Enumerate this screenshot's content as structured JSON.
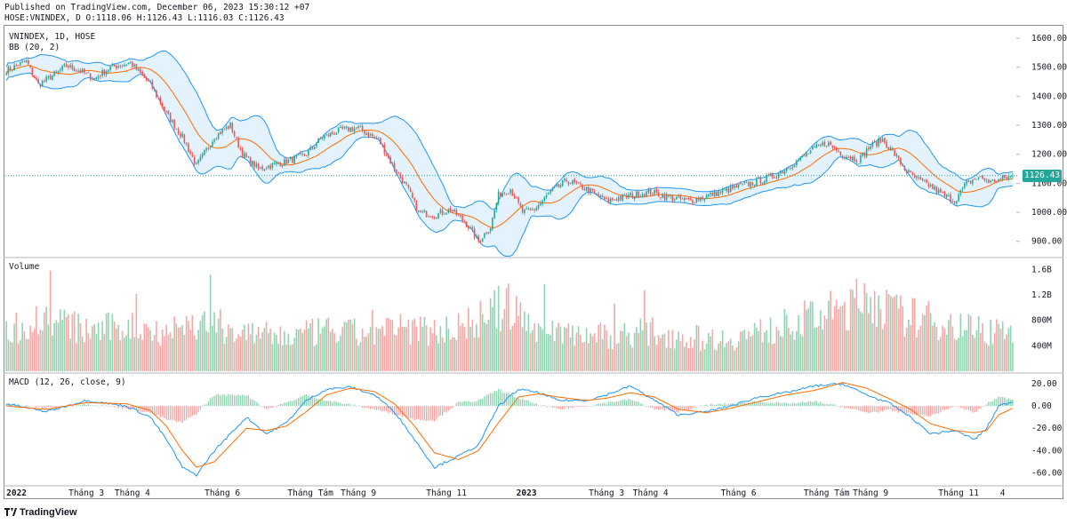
{
  "header": {
    "published": "Published on TradingView.com, December 06, 2023 15:30:12 +07",
    "ohlc": "HOSE:VNINDEX, D O:1118.06 H:1126.43 L:1116.03 C:1126.43"
  },
  "footer": {
    "brand": "TradingView"
  },
  "colors": {
    "up": "#26a69a",
    "down": "#ef5350",
    "up_volume": "#8fd3b0",
    "down_volume": "#f4a7a4",
    "bb_band": "#2196f3",
    "bb_fill": "#e3f2fd",
    "bb_basis": "#ff6d00",
    "macd_line": "#2196f3",
    "signal_line": "#ff6d00",
    "grid": "#f0f3fa",
    "axis_text": "#131722"
  },
  "chart_data": [
    {
      "type": "candlestick",
      "title": "VNINDEX, 1D, HOSE",
      "indicator_label": "BB (20, 2)",
      "ylim": [
        850,
        1640
      ],
      "y_ticks": [
        "1600.00",
        "1500.00",
        "1400.00",
        "1300.00",
        "1200.00",
        "1100.00",
        "1000.00",
        "900.00"
      ],
      "last_price": "1126.43",
      "x_labels": [
        "2022",
        "Tháng 3",
        "Tháng 4",
        "Tháng 6",
        "Tháng Tám",
        "Tháng 9",
        "Tháng 11",
        "2023",
        "Tháng 3",
        "Tháng 4",
        "Tháng 6",
        "Tháng Tám",
        "Tháng 9",
        "Tháng 11",
        "4"
      ],
      "x_label_bars": [
        0,
        40,
        63,
        108,
        152,
        176,
        220,
        260,
        300,
        322,
        366,
        410,
        432,
        476,
        498
      ],
      "close_anchors": [
        [
          0,
          1490
        ],
        [
          10,
          1520
        ],
        [
          16,
          1440
        ],
        [
          24,
          1475
        ],
        [
          30,
          1505
        ],
        [
          36,
          1490
        ],
        [
          44,
          1460
        ],
        [
          52,
          1500
        ],
        [
          62,
          1515
        ],
        [
          72,
          1440
        ],
        [
          80,
          1340
        ],
        [
          88,
          1260
        ],
        [
          95,
          1160
        ],
        [
          104,
          1260
        ],
        [
          112,
          1300
        ],
        [
          118,
          1200
        ],
        [
          126,
          1150
        ],
        [
          140,
          1175
        ],
        [
          150,
          1200
        ],
        [
          158,
          1260
        ],
        [
          168,
          1285
        ],
        [
          176,
          1290
        ],
        [
          186,
          1250
        ],
        [
          194,
          1150
        ],
        [
          200,
          1090
        ],
        [
          206,
          1000
        ],
        [
          214,
          990
        ],
        [
          222,
          1010
        ],
        [
          230,
          960
        ],
        [
          236,
          900
        ],
        [
          242,
          950
        ],
        [
          246,
          1060
        ],
        [
          252,
          1080
        ],
        [
          258,
          1000
        ],
        [
          264,
          1010
        ],
        [
          272,
          1070
        ],
        [
          280,
          1110
        ],
        [
          290,
          1080
        ],
        [
          300,
          1040
        ],
        [
          310,
          1055
        ],
        [
          322,
          1070
        ],
        [
          332,
          1050
        ],
        [
          342,
          1040
        ],
        [
          352,
          1060
        ],
        [
          362,
          1080
        ],
        [
          372,
          1100
        ],
        [
          384,
          1125
        ],
        [
          396,
          1180
        ],
        [
          404,
          1220
        ],
        [
          410,
          1240
        ],
        [
          418,
          1200
        ],
        [
          426,
          1180
        ],
        [
          432,
          1230
        ],
        [
          438,
          1250
        ],
        [
          444,
          1200
        ],
        [
          450,
          1140
        ],
        [
          456,
          1110
        ],
        [
          462,
          1090
        ],
        [
          468,
          1060
        ],
        [
          474,
          1040
        ],
        [
          480,
          1100
        ],
        [
          486,
          1120
        ],
        [
          492,
          1105
        ],
        [
          498,
          1115
        ],
        [
          503,
          1126.43
        ]
      ],
      "bars": 504
    },
    {
      "type": "bar",
      "title": "Volume",
      "ylim": [
        0,
        1760
      ],
      "y_ticks": [
        "1.6B",
        "1.2B",
        "800M",
        "400M"
      ],
      "y_tick_values": [
        1600,
        1200,
        800,
        400
      ],
      "volume_anchors": [
        [
          0,
          700
        ],
        [
          20,
          950
        ],
        [
          40,
          700
        ],
        [
          60,
          780
        ],
        [
          80,
          720
        ],
        [
          100,
          850
        ],
        [
          120,
          650
        ],
        [
          140,
          600
        ],
        [
          160,
          700
        ],
        [
          180,
          650
        ],
        [
          200,
          750
        ],
        [
          220,
          700
        ],
        [
          236,
          900
        ],
        [
          250,
          1150
        ],
        [
          262,
          800
        ],
        [
          280,
          700
        ],
        [
          300,
          620
        ],
        [
          320,
          700
        ],
        [
          340,
          600
        ],
        [
          360,
          560
        ],
        [
          380,
          700
        ],
        [
          400,
          900
        ],
        [
          420,
          1100
        ],
        [
          432,
          1300
        ],
        [
          444,
          1000
        ],
        [
          460,
          900
        ],
        [
          476,
          800
        ],
        [
          490,
          700
        ],
        [
          503,
          750
        ]
      ]
    },
    {
      "type": "line",
      "title": "MACD (12, 26, close, 9)",
      "ylim": [
        -70,
        28
      ],
      "y_ticks": [
        "20.00",
        "0.00",
        "-20.00",
        "-40.00",
        "-60.00"
      ],
      "y_tick_values": [
        20,
        0,
        -20,
        -40,
        -60
      ],
      "series": [
        {
          "name": "MACD",
          "anchors": [
            [
              0,
              2
            ],
            [
              20,
              -5
            ],
            [
              40,
              5
            ],
            [
              60,
              0
            ],
            [
              72,
              -10
            ],
            [
              80,
              -30
            ],
            [
              88,
              -55
            ],
            [
              95,
              -62
            ],
            [
              104,
              -40
            ],
            [
              112,
              -25
            ],
            [
              120,
              -10
            ],
            [
              130,
              -25
            ],
            [
              140,
              -15
            ],
            [
              150,
              5
            ],
            [
              160,
              15
            ],
            [
              172,
              17
            ],
            [
              184,
              10
            ],
            [
              194,
              -5
            ],
            [
              204,
              -30
            ],
            [
              214,
              -55
            ],
            [
              226,
              -45
            ],
            [
              236,
              -35
            ],
            [
              246,
              0
            ],
            [
              256,
              15
            ],
            [
              266,
              12
            ],
            [
              276,
              5
            ],
            [
              290,
              5
            ],
            [
              300,
              10
            ],
            [
              312,
              18
            ],
            [
              324,
              5
            ],
            [
              336,
              -8
            ],
            [
              350,
              -5
            ],
            [
              362,
              0
            ],
            [
              376,
              8
            ],
            [
              390,
              12
            ],
            [
              404,
              18
            ],
            [
              418,
              20
            ],
            [
              430,
              10
            ],
            [
              442,
              2
            ],
            [
              452,
              -10
            ],
            [
              462,
              -25
            ],
            [
              474,
              -22
            ],
            [
              484,
              -30
            ],
            [
              490,
              -20
            ],
            [
              496,
              0
            ],
            [
              503,
              4
            ]
          ]
        },
        {
          "name": "Signal",
          "anchors": [
            [
              0,
              0
            ],
            [
              20,
              -3
            ],
            [
              40,
              3
            ],
            [
              60,
              2
            ],
            [
              72,
              -4
            ],
            [
              80,
              -18
            ],
            [
              88,
              -40
            ],
            [
              95,
              -55
            ],
            [
              104,
              -50
            ],
            [
              112,
              -35
            ],
            [
              120,
              -20
            ],
            [
              130,
              -22
            ],
            [
              140,
              -18
            ],
            [
              150,
              -5
            ],
            [
              160,
              10
            ],
            [
              172,
              16
            ],
            [
              184,
              13
            ],
            [
              194,
              2
            ],
            [
              204,
              -18
            ],
            [
              214,
              -42
            ],
            [
              226,
              -48
            ],
            [
              236,
              -40
            ],
            [
              246,
              -15
            ],
            [
              256,
              8
            ],
            [
              266,
              11
            ],
            [
              276,
              8
            ],
            [
              290,
              5
            ],
            [
              300,
              7
            ],
            [
              312,
              12
            ],
            [
              324,
              8
            ],
            [
              336,
              -3
            ],
            [
              350,
              -6
            ],
            [
              362,
              -2
            ],
            [
              376,
              4
            ],
            [
              390,
              10
            ],
            [
              404,
              14
            ],
            [
              418,
              21
            ],
            [
              430,
              16
            ],
            [
              442,
              6
            ],
            [
              452,
              -3
            ],
            [
              462,
              -16
            ],
            [
              474,
              -22
            ],
            [
              484,
              -24
            ],
            [
              490,
              -22
            ],
            [
              496,
              -8
            ],
            [
              503,
              -2
            ]
          ]
        }
      ]
    }
  ]
}
